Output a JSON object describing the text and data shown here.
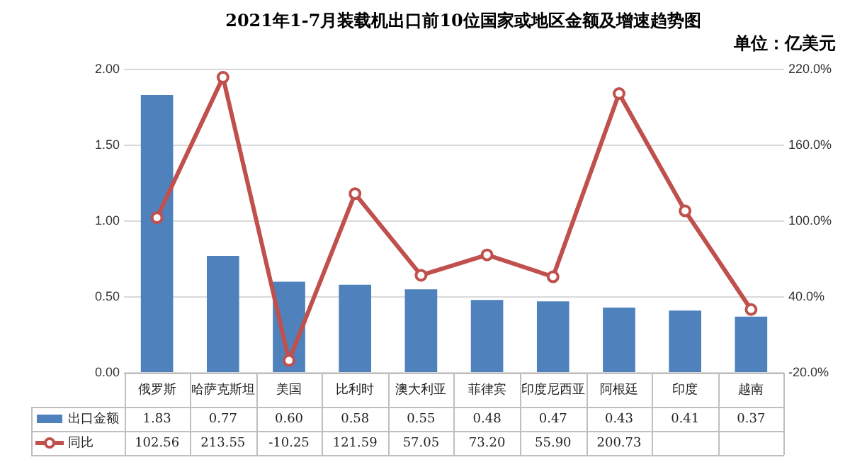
{
  "chart_data": {
    "type": "bar",
    "title": "2021年1-7月装载机出口前10位国家或地区金额及增速趋势图",
    "subtitle": "单位：亿美元",
    "categories": [
      "俄罗斯",
      "哈萨克斯坦",
      "美国",
      "比利时",
      "澳大利亚",
      "菲律宾",
      "印度尼西亚",
      "阿根廷",
      "印度",
      "越南"
    ],
    "series": [
      {
        "name": "出口金额",
        "color": "#4f81bd",
        "values": [
          1.83,
          0.77,
          0.6,
          0.58,
          0.55,
          0.48,
          0.47,
          0.43,
          0.41,
          0.37
        ],
        "value_labels": [
          "1.83",
          "0.77",
          "0.60",
          "0.58",
          "0.55",
          "0.48",
          "0.47",
          "0.43",
          "0.41",
          "0.37"
        ]
      },
      {
        "name": "同比",
        "type": "line",
        "axis": "y2",
        "color": "#c0504d",
        "marker": "circle",
        "values": [
          102.56,
          213.55,
          -10.25,
          121.59,
          57.05,
          73.2,
          55.9,
          200.73,
          108,
          30
        ],
        "value_labels": [
          "102.56",
          "213.55",
          "-10.25",
          "121.59",
          "57.05",
          "73.20",
          "55.90",
          "200.73",
          null,
          null
        ]
      }
    ],
    "ylim": [
      0,
      2
    ],
    "yticks": [
      {
        "value": 0,
        "label": "0.00"
      },
      {
        "value": 0.5,
        "label": "0.50"
      },
      {
        "value": 1,
        "label": "1.00"
      },
      {
        "value": 1.5,
        "label": "1.50"
      },
      {
        "value": 2,
        "label": "2.00"
      }
    ],
    "y2lim": [
      -20,
      220
    ],
    "y2ticks": [
      {
        "value": -20,
        "label": "-20.0%"
      },
      {
        "value": 40,
        "label": "40.0%"
      },
      {
        "value": 100,
        "label": "100.0%"
      },
      {
        "value": 160,
        "label": "160.0%"
      },
      {
        "value": 220,
        "label": "220.0%"
      }
    ],
    "grid": "y",
    "legend": "bottom left"
  }
}
